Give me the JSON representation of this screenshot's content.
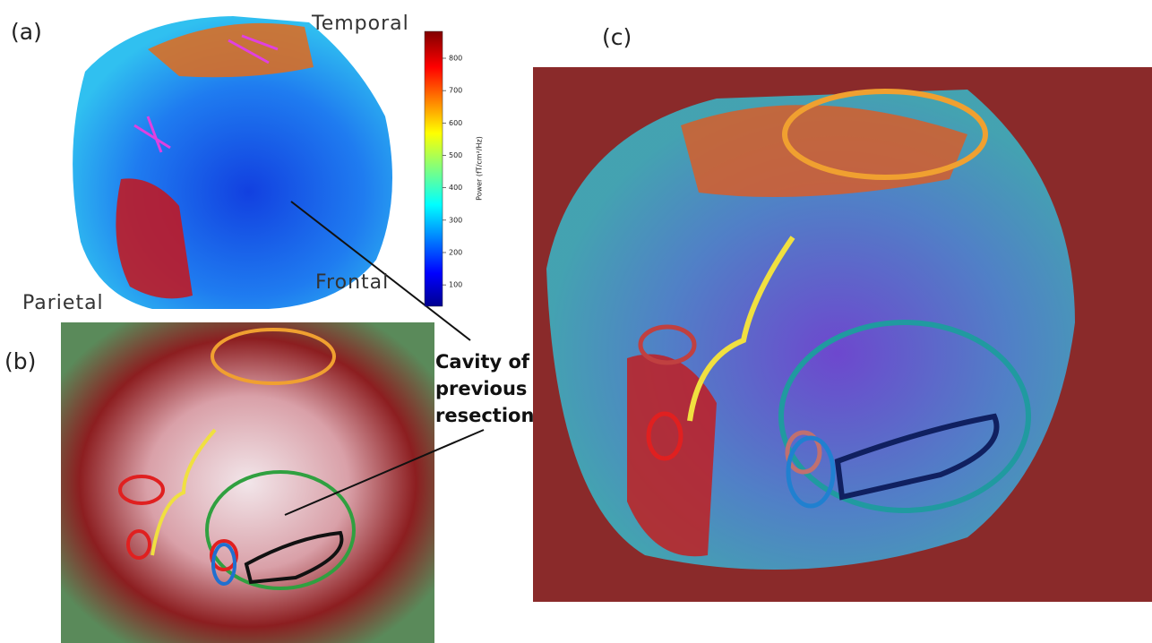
{
  "panels": {
    "a": "(a)",
    "b": "(b)",
    "c": "(c)"
  },
  "regions": {
    "temporal": "Temporal",
    "parietal": "Parietal",
    "frontal": "Frontal"
  },
  "annotation": {
    "lines": [
      "Cavity of",
      "previous",
      "resection"
    ]
  },
  "colorbar": {
    "label": "Power (fT/cm²/Hz)",
    "lim": [
      34,
      883
    ],
    "ticks": [
      100,
      200,
      300,
      400,
      500,
      600,
      700,
      800
    ]
  }
}
